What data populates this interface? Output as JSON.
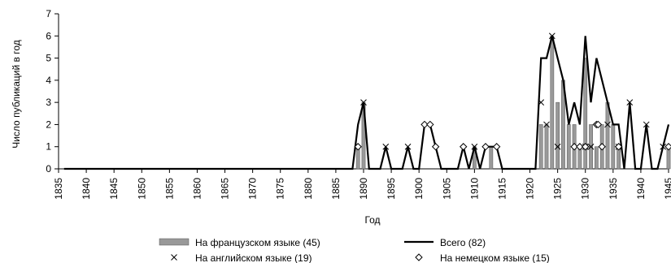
{
  "chart_data": {
    "type": "bar",
    "xlabel": "Год",
    "ylabel": "Число публикаций в год",
    "ylim": [
      0,
      7
    ],
    "xlim": [
      1835,
      1945
    ],
    "yticks": [
      "0",
      "1",
      "2",
      "3",
      "4",
      "5",
      "6",
      "7"
    ],
    "xticks": [
      {
        "year": 1835,
        "label": "1835"
      },
      {
        "year": 1840,
        "label": "1840"
      },
      {
        "year": 1845,
        "label": "1845"
      },
      {
        "year": 1850,
        "label": "1850"
      },
      {
        "year": 1855,
        "label": "1855"
      },
      {
        "year": 1860,
        "label": "1860"
      },
      {
        "year": 1865,
        "label": "1865"
      },
      {
        "year": 1870,
        "label": "1870"
      },
      {
        "year": 1875,
        "label": "1875"
      },
      {
        "year": 1880,
        "label": "1880"
      },
      {
        "year": 1885,
        "label": "1885"
      },
      {
        "year": 1890,
        "label": "1890"
      },
      {
        "year": 1895,
        "label": "1895"
      },
      {
        "year": 1900,
        "label": "1900"
      },
      {
        "year": 1905,
        "label": "1905"
      },
      {
        "year": 1910,
        "label": "1910"
      },
      {
        "year": 1915,
        "label": "1915"
      },
      {
        "year": 1920,
        "label": "1920"
      },
      {
        "year": 1925,
        "label": "1925"
      },
      {
        "year": 1930,
        "label": "1930"
      },
      {
        "year": 1935,
        "label": "1935"
      },
      {
        "year": 1940,
        "label": "1940"
      },
      {
        "year": 1945,
        "label": "1945"
      }
    ],
    "legend_placement": "bottom",
    "grid": false,
    "series": [
      {
        "name": "На французском языке (45)",
        "kind": "bar",
        "color": "#999999",
        "points": [
          [
            1889,
            1
          ],
          [
            1890,
            3
          ],
          [
            1910,
            1
          ],
          [
            1913,
            1
          ],
          [
            1922,
            2
          ],
          [
            1923,
            2
          ],
          [
            1924,
            6
          ],
          [
            1925,
            3
          ],
          [
            1926,
            4
          ],
          [
            1927,
            2
          ],
          [
            1928,
            2
          ],
          [
            1929,
            1
          ],
          [
            1930,
            5
          ],
          [
            1931,
            2
          ],
          [
            1932,
            1
          ],
          [
            1933,
            2
          ],
          [
            1934,
            3
          ],
          [
            1935,
            2
          ],
          [
            1936,
            1
          ],
          [
            1945,
            1
          ]
        ]
      },
      {
        "name": "Всего (82)",
        "kind": "line",
        "color": "#000000",
        "points": [
          [
            1836,
            0
          ],
          [
            1887,
            0
          ],
          [
            1888,
            0
          ],
          [
            1889,
            2
          ],
          [
            1890,
            3
          ],
          [
            1891,
            0
          ],
          [
            1893,
            0
          ],
          [
            1894,
            1
          ],
          [
            1895,
            0
          ],
          [
            1897,
            0
          ],
          [
            1898,
            1
          ],
          [
            1899,
            0
          ],
          [
            1900,
            0
          ],
          [
            1901,
            2
          ],
          [
            1902,
            2
          ],
          [
            1903,
            1
          ],
          [
            1904,
            0
          ],
          [
            1907,
            0
          ],
          [
            1908,
            1
          ],
          [
            1909,
            0
          ],
          [
            1910,
            1
          ],
          [
            1911,
            0
          ],
          [
            1912,
            1
          ],
          [
            1913,
            1
          ],
          [
            1914,
            1
          ],
          [
            1915,
            0
          ],
          [
            1921,
            0
          ],
          [
            1922,
            5
          ],
          [
            1923,
            5
          ],
          [
            1924,
            6
          ],
          [
            1925,
            5
          ],
          [
            1926,
            4
          ],
          [
            1927,
            2
          ],
          [
            1928,
            3
          ],
          [
            1929,
            2
          ],
          [
            1930,
            6
          ],
          [
            1931,
            3
          ],
          [
            1932,
            5
          ],
          [
            1933,
            4
          ],
          [
            1934,
            3
          ],
          [
            1935,
            2
          ],
          [
            1936,
            2
          ],
          [
            1937,
            0
          ],
          [
            1938,
            3
          ],
          [
            1939,
            0
          ],
          [
            1940,
            0
          ],
          [
            1941,
            2
          ],
          [
            1942,
            0
          ],
          [
            1943,
            0
          ],
          [
            1944,
            1
          ],
          [
            1945,
            2
          ]
        ]
      },
      {
        "name": "На английском языке (19)",
        "kind": "marker-x",
        "color": "#000000",
        "points": [
          [
            1890,
            3
          ],
          [
            1894,
            1
          ],
          [
            1898,
            1
          ],
          [
            1910,
            1
          ],
          [
            1922,
            3
          ],
          [
            1923,
            2
          ],
          [
            1924,
            6
          ],
          [
            1925,
            1
          ],
          [
            1930,
            1
          ],
          [
            1931,
            1
          ],
          [
            1934,
            2
          ],
          [
            1936,
            1
          ],
          [
            1938,
            3
          ],
          [
            1941,
            2
          ],
          [
            1944,
            1
          ]
        ]
      },
      {
        "name": "На немецком языке (15)",
        "kind": "marker-diamond",
        "color": "#000000",
        "points": [
          [
            1889,
            1
          ],
          [
            1901,
            2
          ],
          [
            1902,
            2
          ],
          [
            1903,
            1
          ],
          [
            1908,
            1
          ],
          [
            1912,
            1
          ],
          [
            1914,
            1
          ],
          [
            1928,
            1
          ],
          [
            1929,
            1
          ],
          [
            1930,
            1
          ],
          [
            1932,
            2
          ],
          [
            1932,
            2
          ],
          [
            1933,
            1
          ],
          [
            1936,
            1
          ],
          [
            1945,
            1
          ]
        ]
      }
    ]
  }
}
